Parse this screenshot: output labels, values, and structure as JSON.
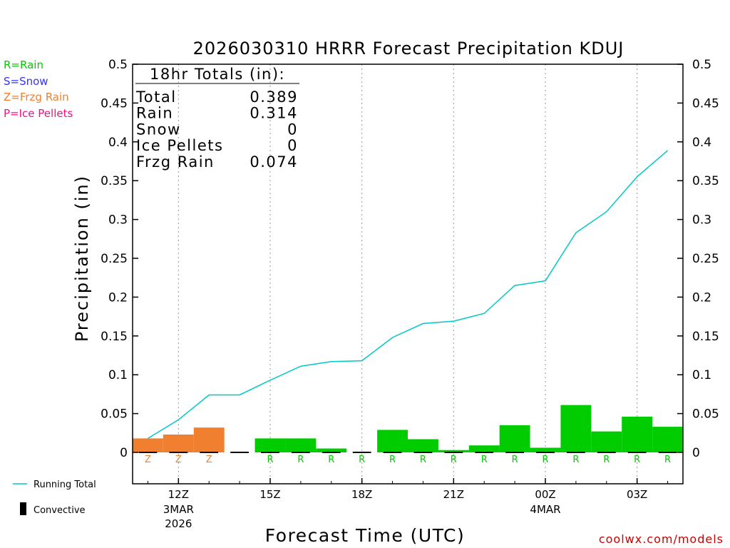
{
  "chart_data": {
    "type": "bar+line",
    "title": "2026030310 HRRR Forecast Precipitation KDUJ",
    "xlabel": "Forecast Time (UTC)",
    "ylabel": "Precipitation (in)",
    "ylim": [
      -0.04,
      0.5
    ],
    "yticks": [
      "0",
      "0.05",
      "0.1",
      "0.15",
      "0.2",
      "0.25",
      "0.3",
      "0.35",
      "0.4",
      "0.45",
      "0.5"
    ],
    "ytick_values": [
      0,
      0.05,
      0.1,
      0.15,
      0.2,
      0.25,
      0.3,
      0.35,
      0.4,
      0.45,
      0.5
    ],
    "x_hour_range": [
      10.5,
      28.5
    ],
    "x_ticks": [
      {
        "hour": 12,
        "label": "12Z",
        "date1": "3MAR",
        "date2": "2026"
      },
      {
        "hour": 15,
        "label": "15Z",
        "date1": "",
        "date2": ""
      },
      {
        "hour": 18,
        "label": "18Z",
        "date1": "",
        "date2": ""
      },
      {
        "hour": 21,
        "label": "21Z",
        "date1": "",
        "date2": ""
      },
      {
        "hour": 24,
        "label": "00Z",
        "date1": "4MAR",
        "date2": ""
      },
      {
        "hour": 27,
        "label": "03Z",
        "date1": "",
        "date2": ""
      }
    ],
    "hours": [
      11,
      12,
      13,
      14,
      15,
      16,
      17,
      18,
      19,
      20,
      21,
      22,
      23,
      24,
      25,
      26,
      27,
      28
    ],
    "hourly_precip": [
      0.018,
      0.023,
      0.032,
      0.0,
      0.018,
      0.018,
      0.005,
      0.0,
      0.029,
      0.017,
      0.003,
      0.009,
      0.035,
      0.006,
      0.061,
      0.027,
      0.046,
      0.033
    ],
    "ptype": [
      "Z",
      "Z",
      "Z",
      "",
      "R",
      "R",
      "R",
      "R",
      "R",
      "R",
      "R",
      "R",
      "R",
      "R",
      "R",
      "R",
      "R",
      "R"
    ],
    "convective": [
      0,
      0,
      0,
      0,
      0,
      0,
      0,
      0,
      0,
      0,
      0,
      0,
      0,
      0,
      0,
      0,
      0,
      0
    ],
    "running_total": [
      0.018,
      0.042,
      0.074,
      0.074,
      0.093,
      0.111,
      0.117,
      0.118,
      0.148,
      0.166,
      0.169,
      0.179,
      0.215,
      0.221,
      0.283,
      0.31,
      0.355,
      0.389
    ],
    "totals_box": {
      "title": "18hr Totals (in):",
      "rows": [
        {
          "label": "Total",
          "value": "0.389"
        },
        {
          "label": "Rain",
          "value": "0.314"
        },
        {
          "label": "Snow",
          "value": "0"
        },
        {
          "label": "Ice Pellets",
          "value": "0"
        },
        {
          "label": "Frzg Rain",
          "value": "0.074"
        }
      ]
    }
  },
  "legend": {
    "rain": "R=Rain",
    "snow": "S=Snow",
    "frzg": "Z=Frzg Rain",
    "ice": "P=Ice Pellets",
    "running_total": "Running Total",
    "convective": "Convective"
  },
  "colors": {
    "rain": "#00cc00",
    "snow": "#3333ff",
    "frzg": "#f08030",
    "ice": "#ee1188",
    "running_total": "#00c8c8",
    "credit": "#cc0000"
  },
  "credit": "coolwx.com/models"
}
